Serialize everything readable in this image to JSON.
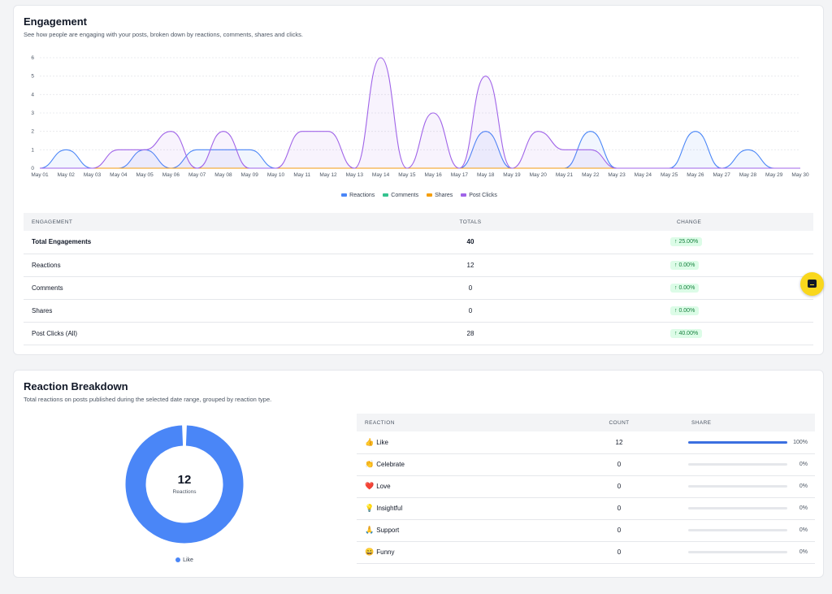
{
  "engagement": {
    "title": "Engagement",
    "subtitle": "See how people are engaging with your posts, broken down by reactions, comments, shares and clicks.",
    "chart_data": {
      "type": "area",
      "x": [
        "May 01",
        "May 02",
        "May 03",
        "May 04",
        "May 05",
        "May 06",
        "May 07",
        "May 08",
        "May 09",
        "May 10",
        "May 11",
        "May 12",
        "May 13",
        "May 14",
        "May 15",
        "May 16",
        "May 17",
        "May 18",
        "May 19",
        "May 20",
        "May 21",
        "May 22",
        "May 23",
        "May 24",
        "May 25",
        "May 26",
        "May 27",
        "May 28",
        "May 29",
        "May 30"
      ],
      "yticks": [
        0,
        1,
        2,
        3,
        4,
        5,
        6
      ],
      "ylim": [
        0,
        6
      ],
      "series": [
        {
          "name": "Reactions",
          "color": "#4a86f7",
          "values": [
            0,
            1,
            0,
            0,
            1,
            0,
            1,
            1,
            1,
            0,
            0,
            0,
            0,
            0,
            0,
            0,
            0,
            2,
            0,
            0,
            0,
            2,
            0,
            0,
            0,
            2,
            0,
            1,
            0,
            0
          ]
        },
        {
          "name": "Comments",
          "color": "#34c38f",
          "values": [
            0,
            0,
            0,
            0,
            0,
            0,
            0,
            0,
            0,
            0,
            0,
            0,
            0,
            0,
            0,
            0,
            0,
            0,
            0,
            0,
            0,
            0,
            0,
            0,
            0,
            0,
            0,
            0,
            0,
            0
          ]
        },
        {
          "name": "Shares",
          "color": "#f59e0b",
          "values": [
            0,
            0,
            0,
            0,
            0,
            0,
            0,
            0,
            0,
            0,
            0,
            0,
            0,
            0,
            0,
            0,
            0,
            0,
            0,
            0,
            0,
            0,
            0,
            0,
            0,
            0,
            0,
            0,
            0,
            0
          ]
        },
        {
          "name": "Post Clicks",
          "color": "#a064e8",
          "values": [
            0,
            0,
            0,
            1,
            1,
            2,
            0,
            2,
            0,
            0,
            2,
            2,
            0,
            6,
            0,
            3,
            0,
            5,
            0,
            2,
            1,
            1,
            0,
            0,
            0,
            0,
            0,
            0,
            0,
            0
          ]
        }
      ],
      "grid": true,
      "legend": "bottom"
    },
    "table": {
      "headers": {
        "metric": "ENGAGEMENT",
        "totals": "TOTALS",
        "change": "CHANGE"
      },
      "rows": [
        {
          "label": "Total Engagements",
          "total": "40",
          "change": "↑ 25.00%"
        },
        {
          "label": "Reactions",
          "total": "12",
          "change": "↑ 0.00%"
        },
        {
          "label": "Comments",
          "total": "0",
          "change": "↑ 0.00%"
        },
        {
          "label": "Shares",
          "total": "0",
          "change": "↑ 0.00%"
        },
        {
          "label": "Post Clicks (All)",
          "total": "28",
          "change": "↑ 40.00%"
        }
      ]
    }
  },
  "reactions": {
    "title": "Reaction Breakdown",
    "subtitle": "Total reactions on posts published during the selected date range, grouped by reaction type.",
    "donut": {
      "total": "12",
      "label": "Reactions",
      "legend": "Like",
      "color": "#4a86f7",
      "chart_data": {
        "type": "pie",
        "categories": [
          "Like"
        ],
        "values": [
          12
        ]
      }
    },
    "table": {
      "headers": {
        "reaction": "REACTION",
        "count": "COUNT",
        "share": "SHARE"
      },
      "rows": [
        {
          "emoji": "👍",
          "label": "Like",
          "count": "12",
          "share": 1.0,
          "pct": "100%"
        },
        {
          "emoji": "👏",
          "label": "Celebrate",
          "count": "0",
          "share": 0,
          "pct": "0%"
        },
        {
          "emoji": "❤️",
          "label": "Love",
          "count": "0",
          "share": 0,
          "pct": "0%"
        },
        {
          "emoji": "💡",
          "label": "Insightful",
          "count": "0",
          "share": 0,
          "pct": "0%"
        },
        {
          "emoji": "🙏",
          "label": "Support",
          "count": "0",
          "share": 0,
          "pct": "0%"
        },
        {
          "emoji": "😄",
          "label": "Funny",
          "count": "0",
          "share": 0,
          "pct": "0%"
        }
      ]
    }
  },
  "help": {
    "icon": "chat-icon",
    "color": "#f9d71c"
  }
}
